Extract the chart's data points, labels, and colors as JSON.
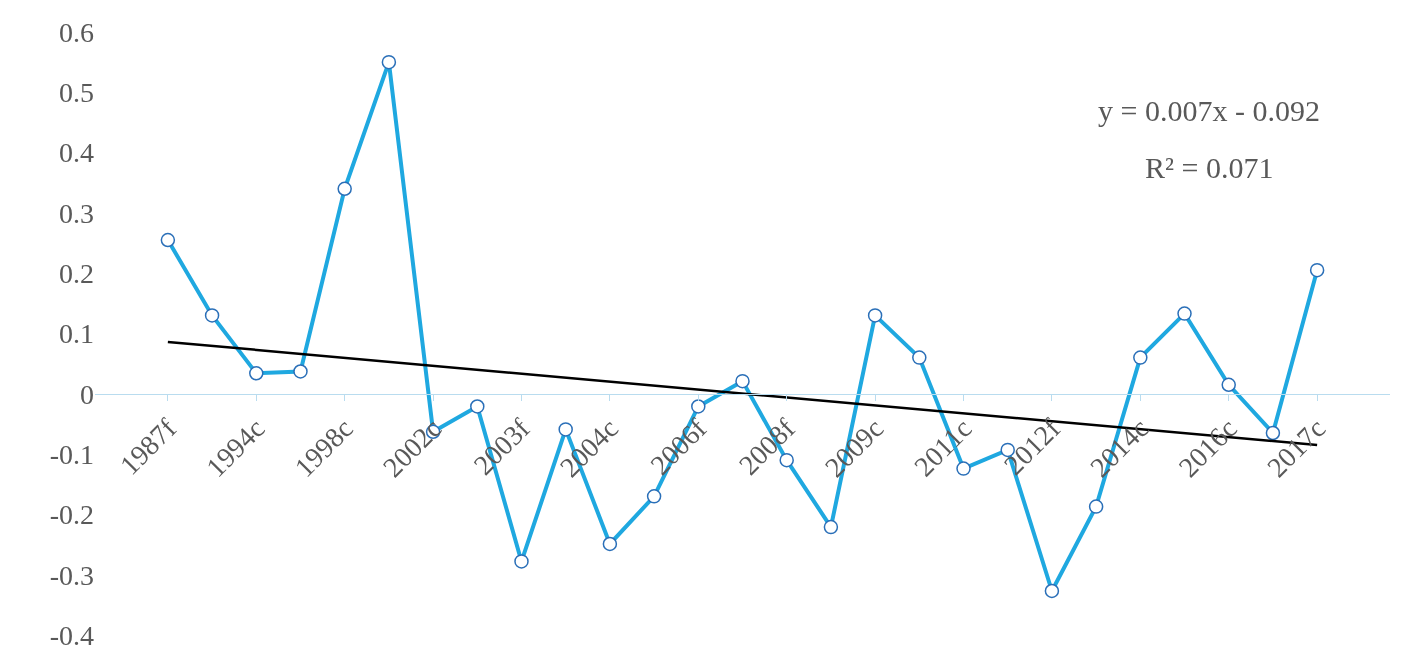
{
  "chart_data": {
    "type": "line",
    "categories": [
      "1987f",
      null,
      "1994c",
      null,
      "1998c",
      null,
      "2002c",
      null,
      "2003f",
      null,
      "2004c",
      null,
      "2006f",
      null,
      "2008f",
      null,
      "2009c",
      null,
      "2011c",
      null,
      "2012f",
      null,
      "2014c",
      null,
      "2016c",
      null,
      "2017c"
    ],
    "series": [
      {
        "color": "#1fa8e0",
        "marker": "circle",
        "values": [
          0.255,
          0.13,
          0.034,
          0.037,
          0.34,
          0.55,
          -0.063,
          -0.021,
          -0.278,
          -0.059,
          -0.249,
          -0.17,
          -0.021,
          0.021,
          -0.11,
          -0.221,
          0.13,
          0.06,
          -0.124,
          -0.093,
          -0.327,
          -0.187,
          0.06,
          0.133,
          0.015,
          -0.065,
          0.205
        ]
      },
      {
        "type": "line",
        "color": "#000000",
        "marker": "none",
        "x": [
          "1987f",
          "2017c"
        ],
        "values": [
          0.086,
          -0.085
        ]
      }
    ],
    "ylim": [
      -0.4,
      0.6
    ],
    "yticks": [
      0.6,
      0.5,
      0.4,
      0.3,
      0.2,
      0.1,
      0,
      -0.1,
      -0.2,
      -0.3,
      -0.4
    ],
    "annotations": [
      "y = 0.007x - 0.092",
      "R² = 0.071"
    ]
  }
}
